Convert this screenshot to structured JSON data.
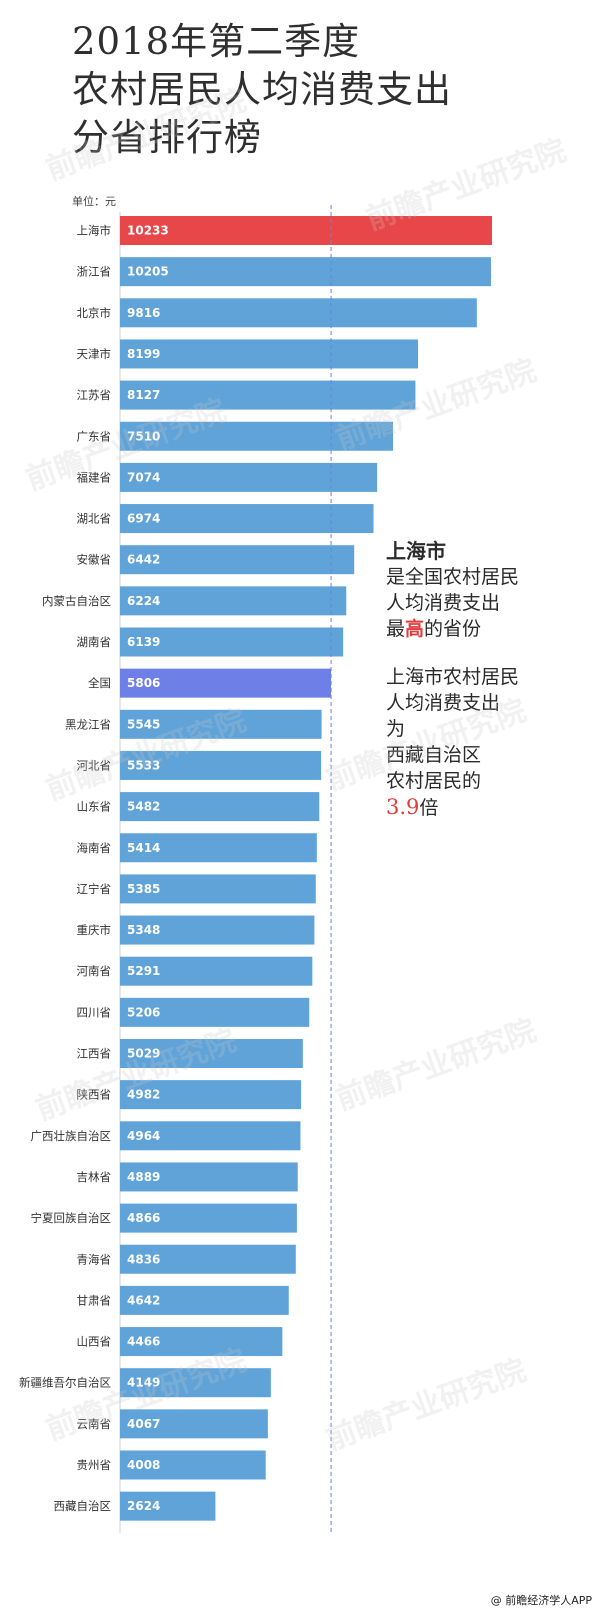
{
  "title": {
    "line1": "2018年第二季度",
    "line2": "农村居民人均消费支出",
    "line3": "分省排行榜"
  },
  "unit_label": "单位：元",
  "annotation": {
    "lead": "上海市",
    "p1_line1": "是全国农村居民",
    "p1_line2": "人均消费支出",
    "p1_line3_a": "最",
    "p1_line3_highlight": "高",
    "p1_line3_b": "的省份",
    "p2_line1": "上海市农村居民",
    "p2_line2": "人均消费支出",
    "p2_line3": "为",
    "p2_line4": "西藏自治区",
    "p2_line5": "农村居民的",
    "p2_ratio": "3.9",
    "p2_tail": "倍"
  },
  "footer": "@ 前瞻经济学人APP",
  "watermark": "前瞻产业研究院",
  "colors": {
    "bar_default": "#5fa3d8",
    "bar_top": "#e84749",
    "bar_national": "#6f7fe8",
    "reference_line": "#6f7fe8",
    "highlight_text": "#e13c3c"
  },
  "chart_data": {
    "type": "bar",
    "orientation": "horizontal",
    "unit": "元",
    "categories": [
      "上海市",
      "浙江省",
      "北京市",
      "天津市",
      "江苏省",
      "广东省",
      "福建省",
      "湖北省",
      "安徽省",
      "内蒙古自治区",
      "湖南省",
      "全国",
      "黑龙江省",
      "河北省",
      "山东省",
      "海南省",
      "辽宁省",
      "重庆市",
      "河南省",
      "四川省",
      "江西省",
      "陕西省",
      "广西壮族自治区",
      "吉林省",
      "宁夏回族自治区",
      "青海省",
      "甘肃省",
      "山西省",
      "新疆维吾尔自治区",
      "云南省",
      "贵州省",
      "西藏自治区"
    ],
    "values": [
      10233,
      10205,
      9816,
      8199,
      8127,
      7510,
      7074,
      6974,
      6442,
      6224,
      6139,
      5806,
      5545,
      5533,
      5482,
      5414,
      5385,
      5348,
      5291,
      5206,
      5029,
      4982,
      4964,
      4889,
      4866,
      4836,
      4642,
      4466,
      4149,
      4067,
      4008,
      2624
    ],
    "highlight": {
      "上海市": "top",
      "全国": "national"
    },
    "reference_line_value": 5806,
    "xlim": [
      0,
      10233
    ],
    "grid": false,
    "legend": "none"
  }
}
